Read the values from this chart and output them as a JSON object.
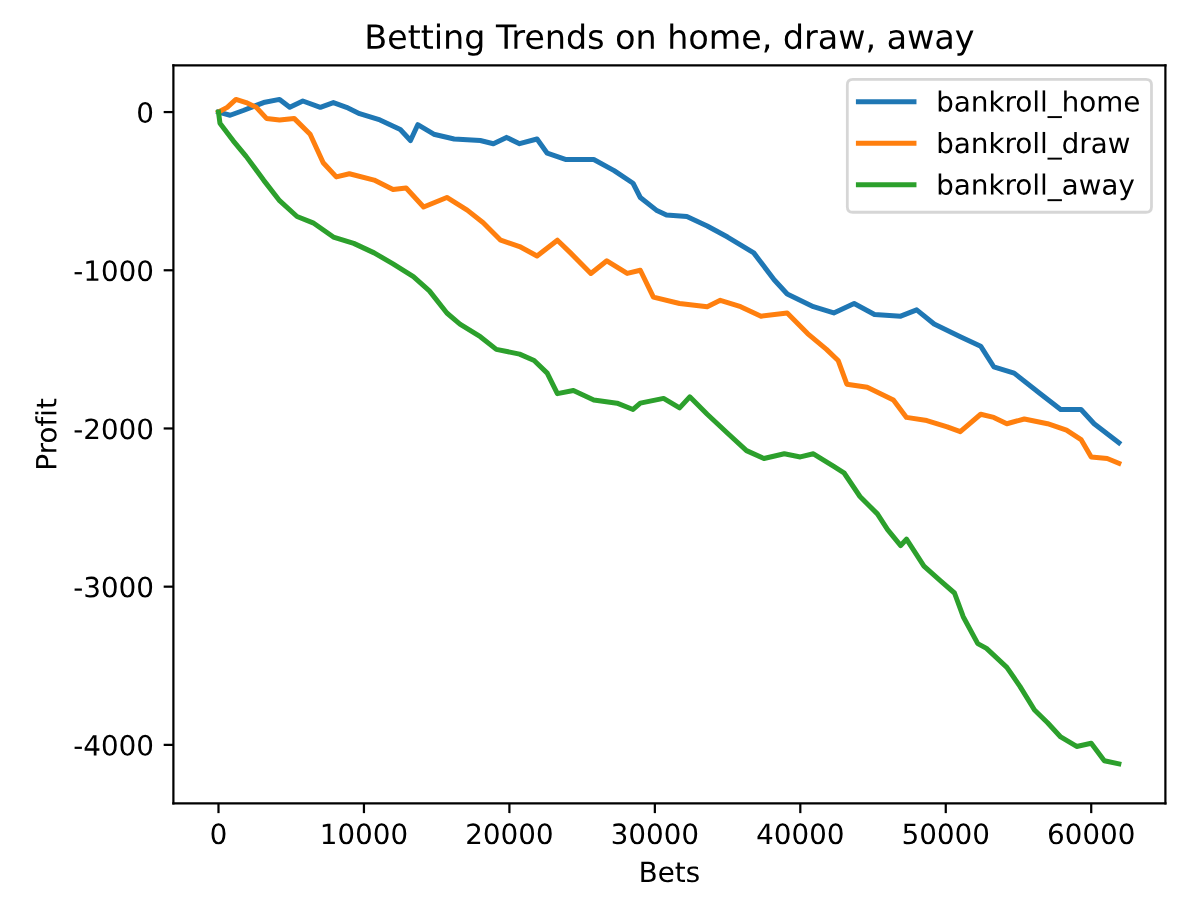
{
  "chart_data": {
    "type": "line",
    "title": "Betting Trends on home, draw, away",
    "xlabel": "Bets",
    "ylabel": "Profit",
    "xlim": [
      -3100,
      65100
    ],
    "ylim": [
      -4370,
      295
    ],
    "xticks": [
      0,
      10000,
      20000,
      30000,
      40000,
      50000,
      60000
    ],
    "yticks": [
      -4000,
      -3000,
      -2000,
      -1000,
      0
    ],
    "grid": false,
    "legend": "top right",
    "marker": "none",
    "line_style": "solid",
    "series": [
      {
        "name": "bankroll_home",
        "color": "#1f77b4",
        "x": [
          0,
          800,
          1700,
          3100,
          4200,
          4900,
          5800,
          7000,
          7900,
          8800,
          9700,
          11100,
          12500,
          13200,
          13700,
          14800,
          16200,
          18000,
          18900,
          19800,
          20700,
          21900,
          22600,
          23900,
          25800,
          27200,
          28500,
          29000,
          30100,
          30800,
          32200,
          33600,
          35000,
          36800,
          38200,
          39100,
          40900,
          42300,
          43700,
          45100,
          46900,
          48000,
          49200,
          51000,
          52400,
          53300,
          54700,
          56500,
          57900,
          59300,
          60200,
          61900
        ],
        "values": [
          0,
          -20,
          10,
          60,
          80,
          30,
          70,
          30,
          60,
          30,
          -10,
          -50,
          -110,
          -180,
          -80,
          -140,
          -170,
          -180,
          -200,
          -160,
          -200,
          -170,
          -260,
          -300,
          -300,
          -370,
          -450,
          -540,
          -620,
          -650,
          -660,
          -720,
          -790,
          -890,
          -1060,
          -1150,
          -1230,
          -1270,
          -1210,
          -1280,
          -1290,
          -1250,
          -1340,
          -1420,
          -1480,
          -1610,
          -1650,
          -1780,
          -1880,
          -1880,
          -1970,
          -2090
        ]
      },
      {
        "name": "bankroll_draw",
        "color": "#ff7f0e",
        "x": [
          0,
          600,
          1200,
          1900,
          2600,
          3300,
          4200,
          5200,
          6300,
          7200,
          8100,
          9000,
          10700,
          12000,
          12900,
          14100,
          15700,
          17100,
          18200,
          19400,
          20700,
          21900,
          23300,
          24200,
          25600,
          26700,
          28100,
          29000,
          29900,
          31700,
          33600,
          34500,
          35900,
          37300,
          39100,
          40500,
          41800,
          42600,
          43200,
          44600,
          46400,
          47300,
          48700,
          50100,
          51000,
          52400,
          53300,
          54200,
          55400,
          57000,
          58300,
          59300,
          60000,
          61100,
          61900
        ],
        "values": [
          0,
          30,
          80,
          60,
          30,
          -40,
          -50,
          -40,
          -140,
          -320,
          -410,
          -390,
          -430,
          -490,
          -480,
          -600,
          -540,
          -620,
          -700,
          -810,
          -850,
          -910,
          -810,
          -890,
          -1020,
          -940,
          -1020,
          -1000,
          -1170,
          -1210,
          -1230,
          -1190,
          -1230,
          -1290,
          -1270,
          -1400,
          -1500,
          -1570,
          -1720,
          -1740,
          -1820,
          -1930,
          -1950,
          -1990,
          -2020,
          -1910,
          -1930,
          -1970,
          -1940,
          -1970,
          -2010,
          -2070,
          -2180,
          -2190,
          -2220
        ]
      },
      {
        "name": "bankroll_away",
        "color": "#2ca02c",
        "x": [
          0,
          100,
          1000,
          1900,
          3100,
          4200,
          5400,
          6500,
          7900,
          9300,
          10700,
          12000,
          13400,
          14500,
          15700,
          16600,
          18000,
          19100,
          20700,
          21700,
          22600,
          23300,
          24400,
          25800,
          27400,
          28500,
          29000,
          30600,
          31700,
          32400,
          33600,
          35000,
          36300,
          37500,
          38900,
          40000,
          40900,
          42300,
          43000,
          44100,
          45300,
          46000,
          46900,
          47300,
          48500,
          49600,
          50600,
          51200,
          52200,
          52800,
          54200,
          55100,
          56100,
          57000,
          57900,
          59000,
          60000,
          60900,
          61900
        ],
        "values": [
          0,
          -70,
          -180,
          -280,
          -430,
          -560,
          -660,
          -700,
          -790,
          -830,
          -890,
          -960,
          -1040,
          -1130,
          -1270,
          -1340,
          -1420,
          -1500,
          -1530,
          -1570,
          -1650,
          -1780,
          -1760,
          -1820,
          -1840,
          -1880,
          -1840,
          -1810,
          -1870,
          -1800,
          -1910,
          -2030,
          -2140,
          -2190,
          -2160,
          -2180,
          -2160,
          -2240,
          -2280,
          -2430,
          -2540,
          -2640,
          -2740,
          -2700,
          -2870,
          -2960,
          -3040,
          -3190,
          -3360,
          -3390,
          -3510,
          -3630,
          -3780,
          -3860,
          -3950,
          -4010,
          -3990,
          -4100,
          -4120
        ]
      }
    ]
  }
}
